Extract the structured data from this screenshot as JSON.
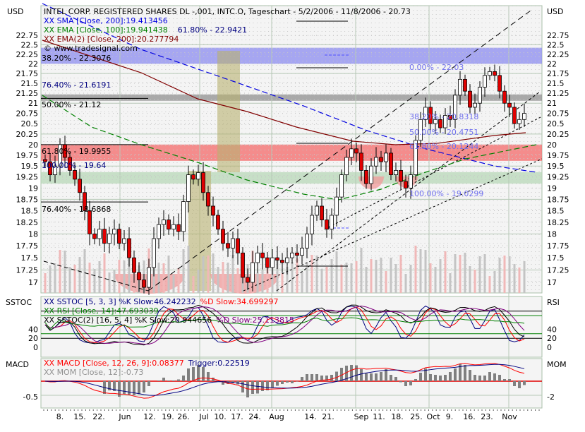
{
  "chart_data": {
    "type": "candlestick",
    "title": "INTEL CORP. REGISTERED SHARES DL -,001, INTC.O, Tageschart - 5/2/2006 - 11/8/2006 - 20.73",
    "currency_label": "USD",
    "watermark": "© www.tradesignal.com",
    "y_scale": "log",
    "ylim": [
      16.85,
      23.1
    ],
    "y_ticks": [
      "22.75",
      "22.5",
      "22.25",
      "22",
      "21.75",
      "21.5",
      "21.25",
      "21",
      "20.75",
      "20.5",
      "20.25",
      "20",
      "19.75",
      "19.5",
      "19.25",
      "19",
      "18.75",
      "18.5",
      "18.25",
      "18",
      "17.75",
      "17.5",
      "17.25",
      "17"
    ],
    "x_ticks": [
      "8.",
      "15.",
      "22.",
      "Jun",
      "12.",
      "19.",
      "26.",
      "Jul",
      "10.",
      "17.",
      "24.",
      "Aug",
      "14.",
      "21.",
      "Sep",
      "11.",
      "18.",
      "25.",
      "Oct",
      "9.",
      "16.",
      "23.",
      "Nov"
    ],
    "closes": [
      19.6,
      19.3,
      19.5,
      20.0,
      19.7,
      19.4,
      19.2,
      18.9,
      18.5,
      18.0,
      17.9,
      18.1,
      17.8,
      18.0,
      18.1,
      17.8,
      17.9,
      17.5,
      17.2,
      17.05,
      16.9,
      17.3,
      17.9,
      18.2,
      18.3,
      18.1,
      18.2,
      18.05,
      18.7,
      19.3,
      19.2,
      19.35,
      18.9,
      18.6,
      18.4,
      18.1,
      17.8,
      17.7,
      17.9,
      17.6,
      17.1,
      17.0,
      17.4,
      17.6,
      17.5,
      17.3,
      17.5,
      17.45,
      17.4,
      17.5,
      17.6,
      17.55,
      17.7,
      18.0,
      18.4,
      18.6,
      18.3,
      18.1,
      18.4,
      18.8,
      19.3,
      19.7,
      19.9,
      19.8,
      19.4,
      19.1,
      19.5,
      19.7,
      19.6,
      19.8,
      19.3,
      19.4,
      19.15,
      19.0,
      19.3,
      20.1,
      20.6,
      20.9,
      20.5,
      20.6,
      20.4,
      20.7,
      20.6,
      21.2,
      21.6,
      21.3,
      20.9,
      21.0,
      21.4,
      21.7,
      21.8,
      21.7,
      21.3,
      21.0,
      20.9,
      20.5,
      20.6,
      20.75
    ],
    "legend": {
      "sma": "XX SMA [Close, 200]:19.413456",
      "ema": "XX EMA [Close, 100]:19.941438",
      "ema2": "XX EMA(2) [Close, 200]:20.277794"
    },
    "bands": [
      {
        "from": 22.0,
        "to": 22.42,
        "color": "#8c8cf0"
      },
      {
        "from": 21.06,
        "to": 21.22,
        "color": "#909090"
      },
      {
        "from": 19.62,
        "to": 20.0,
        "color": "#f46a6a"
      },
      {
        "from": 19.1,
        "to": 19.36,
        "color": "#b8d8b8"
      }
    ],
    "fib_labels_left": [
      "61.80% - 22.9421",
      "38.20% - 22.3076",
      "76.40% - 21.6191",
      "50.00% - 21.12",
      "61.80% - 19.9955",
      "100.00% - 19.64",
      "76.40% - 18.6868"
    ],
    "fib_labels_right": [
      "0.00% - 22.03",
      "38.20% - 20.8318",
      "50.00% - 20.4751",
      "61.80% - 20.1244",
      "100.00% - 19.0299"
    ],
    "stoch_panel": {
      "label_left": "SSTOC",
      "label_right": "RSI",
      "ticks": [
        "40",
        "20",
        "0"
      ],
      "legend1a": "XX SSTOC [5, 3, 3] %K Slow:46.242232",
      "legend1b": "%D Slow:34.699297",
      "legend2": "XX RSI [Close, 14]:47.693039",
      "legend3a": "XX SSTOC(2) [16, 5, 4] %K Slow:20.944656",
      "legend3b": "%D Slow:25.113815"
    },
    "macd_panel": {
      "label_left": "MACD",
      "label_right": "MOM",
      "tick_left": "-0.5",
      "tick_right": "-2",
      "legend1a": "XX MACD [Close, 12, 26, 9]:0.08377",
      "legend1b": "Trigger:0.22519",
      "legend2": "XX MOM [Close, 12]:-0.73"
    }
  }
}
